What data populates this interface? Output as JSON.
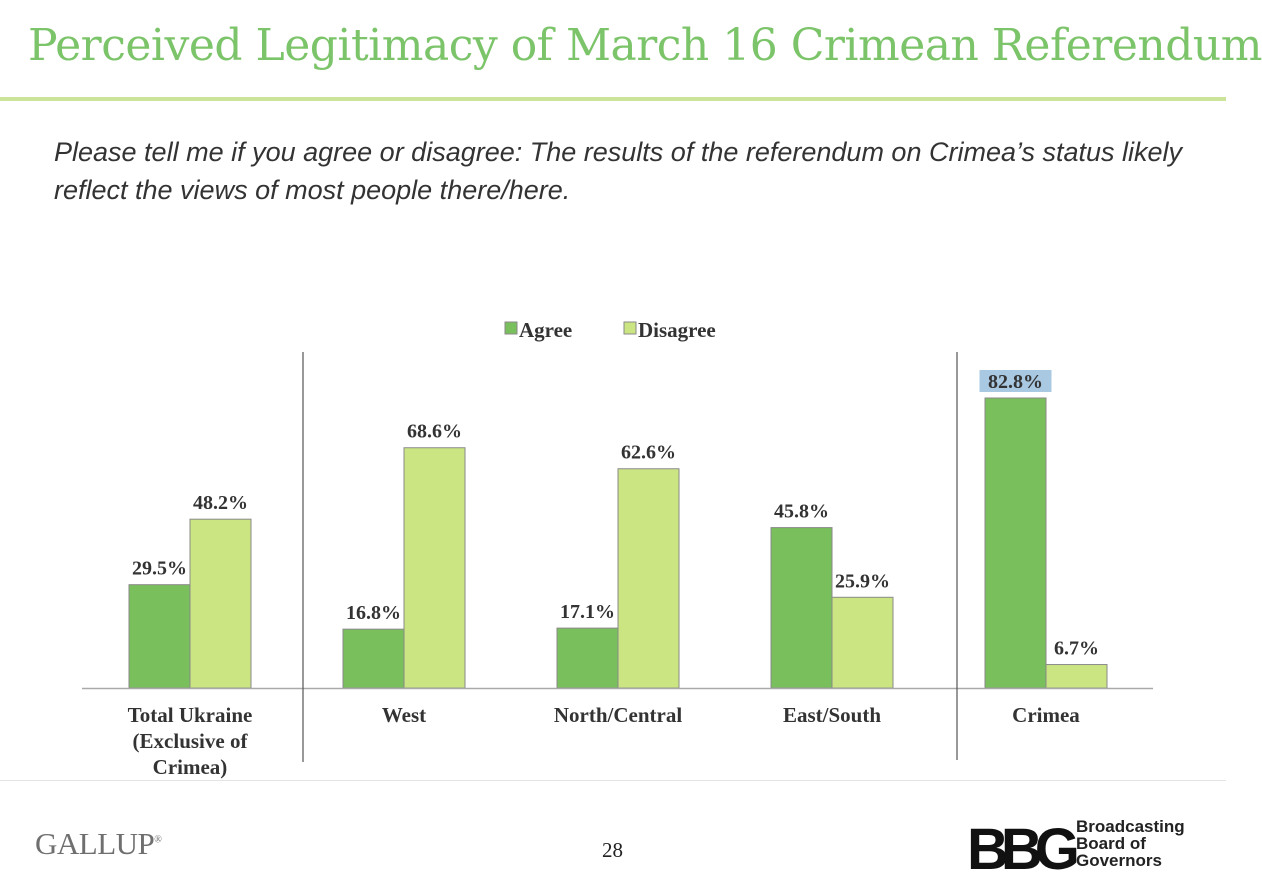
{
  "slide": {
    "title": "Perceived Legitimacy of March 16 Crimean Referendum",
    "question": "Please tell me if you agree or disagree: The results of the referendum on Crimea’s status likely reflect the views of most people there/here.",
    "page_number": "28"
  },
  "footer": {
    "gallup_logo_text": "GALLUP",
    "bbg_logo_text": "BBG",
    "org_name_lines": [
      "Broadcasting",
      "Board of",
      "Governors"
    ]
  },
  "colors": {
    "title": "#7cc46a",
    "agree": "#79bf5b",
    "disagree": "#cbe583",
    "highlight": "#a9c8e2"
  },
  "chart_data": {
    "type": "bar",
    "categories": [
      "Total Ukraine (Exclusive of Crimea)",
      "West",
      "North/Central",
      "East/South",
      "Crimea"
    ],
    "category_lines": [
      [
        "Total Ukraine",
        "(Exclusive of",
        "Crimea)"
      ],
      [
        "West"
      ],
      [
        "North/Central"
      ],
      [
        "East/South"
      ],
      [
        "Crimea"
      ]
    ],
    "series": [
      {
        "name": "Agree",
        "values": [
          29.5,
          16.8,
          17.1,
          45.8,
          82.8
        ],
        "labels": [
          "29.5%",
          "16.8%",
          "17.1%",
          "45.8%",
          "82.8%"
        ]
      },
      {
        "name": "Disagree",
        "values": [
          48.2,
          68.6,
          62.6,
          25.9,
          6.7
        ],
        "labels": [
          "48.2%",
          "68.6%",
          "62.6%",
          "25.9%",
          "6.7%"
        ]
      }
    ],
    "ylim": [
      0,
      100
    ],
    "legend_position": "top-center",
    "grid": false,
    "highlighted_label": "82.8%"
  }
}
